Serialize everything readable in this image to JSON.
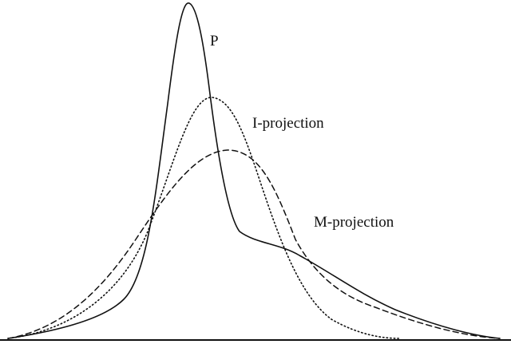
{
  "labels": {
    "p": "P",
    "i_projection": "I-projection",
    "m_projection": "M-projection"
  },
  "styles": {
    "p": "solid",
    "i_projection": "dotted",
    "m_projection": "dashed"
  },
  "colors": {
    "stroke": "#111111",
    "background": "#ffffff"
  }
}
